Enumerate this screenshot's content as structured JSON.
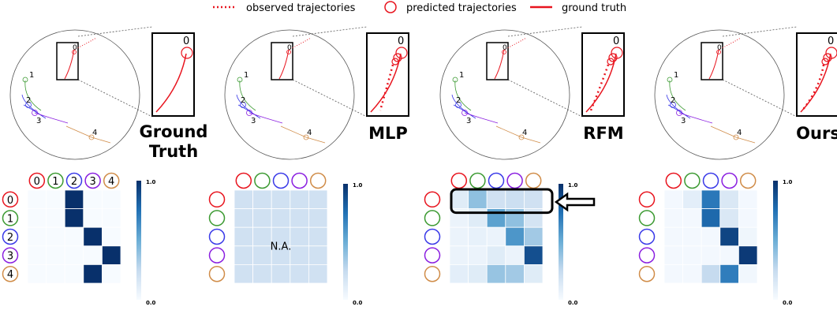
{
  "legend": {
    "observed": "observed trajectories",
    "predicted": "predicted trajectories",
    "truth": "ground truth",
    "observed_color": "#e8141e",
    "predicted_color": "#e8141e",
    "truth_color": "#e8141e"
  },
  "agent_colors": [
    "#e8141e",
    "#3c9a32",
    "#3a3ae8",
    "#8a1ee0",
    "#d08c48"
  ],
  "panels": [
    {
      "title_lines": [
        "Ground",
        "Truth"
      ],
      "zoom_label": "0",
      "node_labels": [
        "0",
        "1",
        "2",
        "3",
        "4"
      ]
    },
    {
      "title_lines": [
        "MLP"
      ],
      "zoom_label": "0",
      "node_labels": [
        "0",
        "1",
        "2",
        "3",
        "4"
      ]
    },
    {
      "title_lines": [
        "RFM"
      ],
      "zoom_label": "0",
      "node_labels": [
        "0",
        "1",
        "2",
        "3",
        "4"
      ]
    },
    {
      "title_lines": [
        "Ours"
      ],
      "zoom_label": "0",
      "node_labels": [
        "0",
        "1",
        "2",
        "3",
        "4"
      ]
    }
  ],
  "chart_data": [
    {
      "type": "heatmap",
      "name": "ground-truth",
      "row_labels": [
        "0",
        "1",
        "2",
        "3",
        "4"
      ],
      "col_labels": [
        "0",
        "1",
        "2",
        "3",
        "4"
      ],
      "values": [
        [
          0,
          0,
          1,
          0,
          0
        ],
        [
          0,
          0,
          1,
          0,
          0
        ],
        [
          0,
          0,
          0,
          1,
          0
        ],
        [
          0,
          0,
          0,
          0,
          1
        ],
        [
          0,
          0,
          0,
          1,
          0
        ]
      ],
      "colorbar": {
        "min_label": "0.0",
        "max_label": "1.0",
        "min": 0,
        "max": 1
      },
      "annotation": ""
    },
    {
      "type": "heatmap",
      "name": "mlp",
      "row_labels": [
        "",
        "",
        "",
        "",
        ""
      ],
      "col_labels": [
        "",
        "",
        "",
        "",
        ""
      ],
      "values": [
        [
          0.2,
          0.2,
          0.2,
          0.2,
          0.2
        ],
        [
          0.2,
          0.2,
          0.2,
          0.2,
          0.2
        ],
        [
          0.2,
          0.2,
          0.2,
          0.2,
          0.2
        ],
        [
          0.2,
          0.2,
          0.2,
          0.2,
          0.2
        ],
        [
          0.2,
          0.2,
          0.2,
          0.2,
          0.2
        ]
      ],
      "colorbar": {
        "min_label": "0.0",
        "max_label": "1.0",
        "min": 0,
        "max": 1
      },
      "annotation": "N.A."
    },
    {
      "type": "heatmap",
      "name": "rfm",
      "row_labels": [
        "",
        "",
        "",
        "",
        ""
      ],
      "col_labels": [
        "",
        "",
        "",
        "",
        ""
      ],
      "values": [
        [
          0.12,
          0.4,
          0.2,
          0.22,
          0.2
        ],
        [
          0.06,
          0.12,
          0.55,
          0.4,
          0.18
        ],
        [
          0.06,
          0.08,
          0.06,
          0.6,
          0.35
        ],
        [
          0.06,
          0.06,
          0.12,
          0.06,
          0.88
        ],
        [
          0.1,
          0.12,
          0.38,
          0.35,
          0.12
        ]
      ],
      "colorbar": {
        "min_label": "0.0",
        "max_label": "1.0",
        "min": 0,
        "max": 1
      },
      "annotation": ""
    },
    {
      "type": "heatmap",
      "name": "ours",
      "row_labels": [
        "",
        "",
        "",
        "",
        ""
      ],
      "col_labels": [
        "",
        "",
        "",
        "",
        ""
      ],
      "values": [
        [
          0.02,
          0.1,
          0.72,
          0.15,
          0.02
        ],
        [
          0.02,
          0.02,
          0.78,
          0.15,
          0.02
        ],
        [
          0.02,
          0.02,
          0.02,
          0.92,
          0.04
        ],
        [
          0.02,
          0.02,
          0.02,
          0.02,
          0.96
        ],
        [
          0.02,
          0.02,
          0.25,
          0.7,
          0.03
        ]
      ],
      "colorbar": {
        "min_label": "0.0",
        "max_label": "1.0",
        "min": 0,
        "max": 1
      },
      "annotation": ""
    }
  ]
}
